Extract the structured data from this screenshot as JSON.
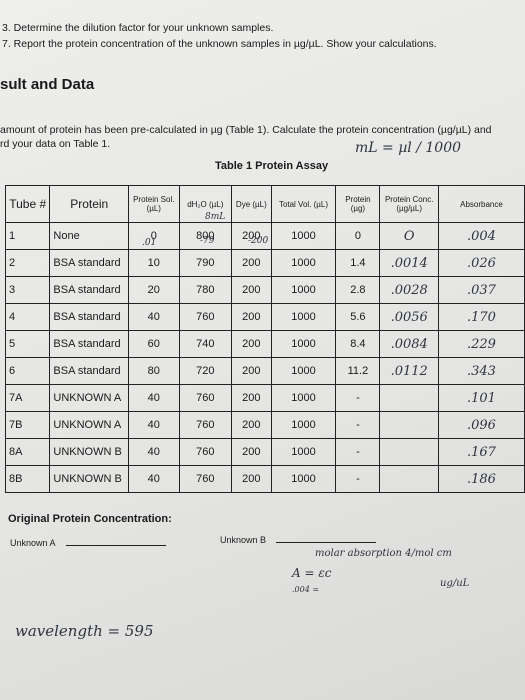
{
  "header": {
    "lines": [
      "3. Determine the dilution factor for your unknown samples.",
      "7. Report the protein concentration of the unknown samples in µg/µL. Show your calculations."
    ]
  },
  "section": {
    "title": "sult and Data",
    "paragraph": [
      "amount of protein has been pre-calculated in µg (Table 1). Calculate the protein concentration (µg/µL) and",
      "rd your data on Table 1."
    ]
  },
  "table": {
    "title": "Table 1 Protein Assay",
    "columns": [
      "Tube #",
      "Protein",
      "Protein Sol. (µL)",
      "dH₂O (µL)",
      "Dye (µL)",
      "Total Vol. (µL)",
      "Protein (µg)",
      "Protein Conc. (µg/µL)",
      "Absorbance"
    ],
    "rows": [
      [
        "1",
        "None",
        "0",
        "800",
        "200",
        "1000",
        "0",
        "O",
        ".004"
      ],
      [
        "2",
        "BSA standard",
        "10",
        "790",
        "200",
        "1000",
        "1.4",
        ".0014",
        ".026"
      ],
      [
        "3",
        "BSA standard",
        "20",
        "780",
        "200",
        "1000",
        "2.8",
        ".0028",
        ".037"
      ],
      [
        "4",
        "BSA standard",
        "40",
        "760",
        "200",
        "1000",
        "5.6",
        ".0056",
        ".170"
      ],
      [
        "5",
        "BSA standard",
        "60",
        "740",
        "200",
        "1000",
        "8.4",
        ".0084",
        ".229"
      ],
      [
        "6",
        "BSA standard",
        "80",
        "720",
        "200",
        "1000",
        "11.2",
        ".0112",
        ".343"
      ],
      [
        "7A",
        "UNKNOWN A",
        "40",
        "760",
        "200",
        "1000",
        "-",
        null,
        ".101"
      ],
      [
        "7B",
        "UNKNOWN A",
        "40",
        "760",
        "200",
        "1000",
        "-",
        null,
        ".096"
      ],
      [
        "8A",
        "UNKNOWN B",
        "40",
        "760",
        "200",
        "1000",
        "-",
        null,
        ".167"
      ],
      [
        "8B",
        "UNKNOWN B",
        "40",
        "760",
        "200",
        "1000",
        "-",
        null,
        ".186"
      ]
    ]
  },
  "footer": {
    "title": "Original Protein Concentration:",
    "fields": [
      "Unknown A",
      "Unknown B"
    ]
  },
  "notes": [
    "mL = µl / 1000",
    "8mL",
    ".01",
    "-79",
    "-200",
    "molar absorption 4/mol cm",
    "A = εc",
    ".004 =",
    "ug/uL",
    "wavelength = 595"
  ]
}
